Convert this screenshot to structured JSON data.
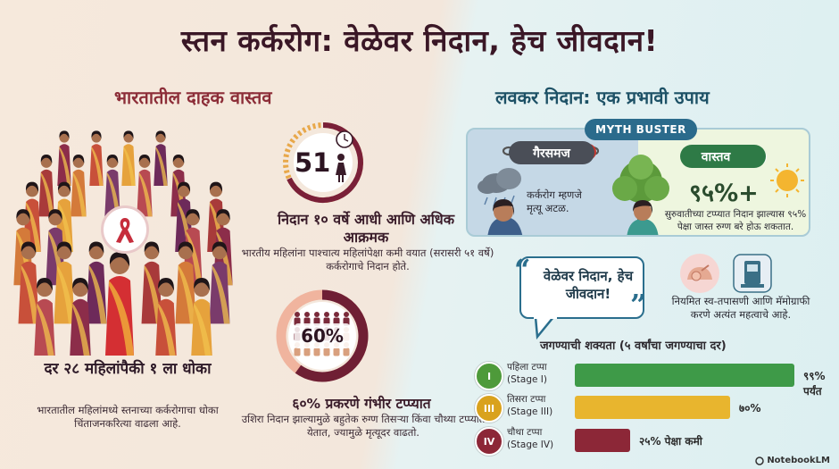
{
  "title": "स्तन कर्करोग: वेळेवर निदान, हेच जीवदान!",
  "left": {
    "heading": "भारतातील दाहक वास्तव",
    "risk_headline": "दर २८ महिलांपैकी १ ला धोका",
    "risk_text": "भारतातील महिलांमध्ये स्तनाच्या कर्करोगाचा धोका चिंताजनकरित्या वाढला आहे.",
    "age_gauge": {
      "value": "51",
      "headline": "निदान १० वर्षे आधी आणि अधिक आक्रमक",
      "text": "भारतीय महिलांना पाश्चात्य महिलांपेक्षा कमी वयात (सरासरी ५१ वर्षे) कर्करोगाचे निदान होते."
    },
    "late_stage_gauge": {
      "value": "60%",
      "fraction": 0.6,
      "headline": "६०% प्रकरणे गंभीर टप्प्यात",
      "text": "उशिरा निदान झाल्यामुळे बहुतेक रुग्ण तिसऱ्या किंवा चौथ्या टप्प्यात येतात, ज्यामुळे मृत्यूदर वाढतो."
    }
  },
  "right": {
    "heading": "लवकर निदान: एक प्रभावी उपाय",
    "myth_buster": {
      "label": "MYTH BUSTER",
      "myth_tag": "गैरसमज",
      "myth_text": "कर्करोग म्हणजे मृत्यू अटळ.",
      "fact_tag": "वास्तव",
      "fact_value": "९५%+",
      "fact_text": "सुरुवातीच्या टप्प्यात निदान झाल्यास ९५% पेक्षा जास्त रुग्ण बरे होऊ शकतात."
    },
    "quote": {
      "open": "“",
      "text": "वेळेवर निदान, हेच जीवदान!",
      "close": "”"
    },
    "self_check_text": "नियमित स्व-तपासणी आणि मॅमोग्राफी करणे अत्यंत महत्वाचे आहे.",
    "survival_title": "जगण्याची शक्यता (५ वर्षांचा जगण्याचा दर)",
    "stages": [
      {
        "icon": "I",
        "name": "पहिला टप्पा",
        "sub": "(Stage I)",
        "value": "९९% पर्यंत",
        "fraction": 0.99,
        "color": "#3e9a48",
        "circle": "#4e9a3a"
      },
      {
        "icon": "III",
        "name": "तिसरा टप्पा",
        "sub": "(Stage III)",
        "value": "७०%",
        "fraction": 0.7,
        "color": "#e8b52e",
        "circle": "#d9a21d"
      },
      {
        "icon": "IV",
        "name": "चौथा टप्पा",
        "sub": "(Stage IV)",
        "value": "२५% पेक्षा कमी",
        "fraction": 0.25,
        "color": "#8c2737",
        "circle": "#8c2737"
      }
    ]
  },
  "footer": {
    "brand": "NotebookLM"
  }
}
